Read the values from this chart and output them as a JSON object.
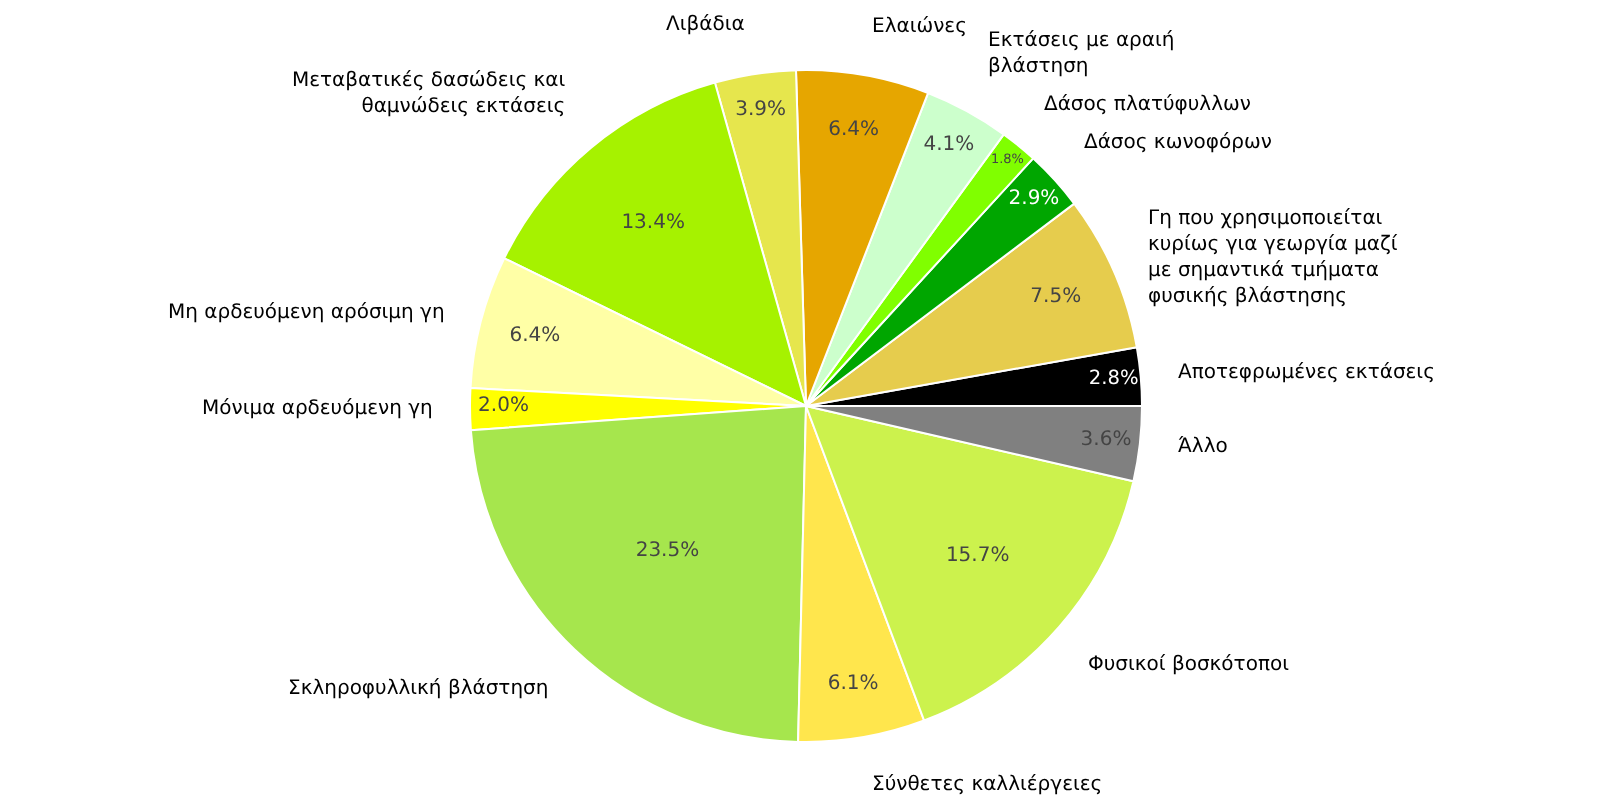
{
  "chart_data": {
    "type": "pie",
    "categories": [
      "Αποτεφρωμένες εκτάσεις",
      "Γη που χρησιμοποιείται\nκυρίως για γεωργία μαζί\nμε σημαντικά τμήματα\nφυσικής βλάστησης",
      "Δάσος κωνοφόρων",
      "Δάσος πλατύφυλλων",
      "Εκτάσεις με αραιή\nβλάστηση",
      "Ελαιώνες",
      "Λιβάδια",
      "Μεταβατικές δασώδεις και\nθαμνώδεις εκτάσεις",
      "Μη αρδευόμενη αρόσιμη γη",
      "Μόνιμα αρδευόμενη γη",
      "Σκληροφυλλική βλάστηση",
      "Σύνθετες καλλιέργειες",
      "Φυσικοί βοσκότοποι",
      "Άλλο"
    ],
    "values": [
      2.8,
      7.5,
      2.9,
      1.8,
      4.1,
      6.4,
      3.9,
      13.4,
      6.4,
      2.0,
      23.5,
      6.1,
      15.7,
      3.6
    ],
    "value_labels": [
      "2.8%",
      "7.5%",
      "2.9%",
      "1.8%",
      "4.1%",
      "6.4%",
      "3.9%",
      "13.4%",
      "6.4%",
      "2.0%",
      "23.5%",
      "6.1%",
      "15.7%",
      "3.6%"
    ],
    "colors": [
      "#000000",
      "#e6cc4d",
      "#00a600",
      "#80ff00",
      "#ccffcc",
      "#e6a600",
      "#e6e64d",
      "#a6f200",
      "#ffffa6",
      "#ffff00",
      "#a6e64d",
      "#ffe64d",
      "#ccf24d",
      "#808080"
    ]
  }
}
